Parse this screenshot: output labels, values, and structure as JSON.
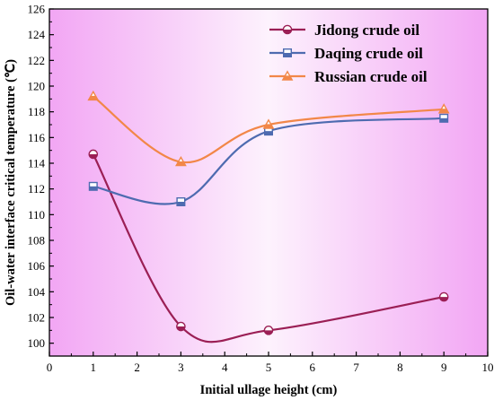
{
  "colors": {
    "background_edge": "#f2a6f4",
    "background_center": "#fdf2fd"
  },
  "chart_data": {
    "type": "line",
    "xlabel": "Initial ullage height (cm)",
    "ylabel": "Oil-water interface critical temperature (℃)",
    "xlim": [
      0,
      10
    ],
    "ylim": [
      99,
      126
    ],
    "xticks": [
      0,
      1,
      2,
      3,
      4,
      5,
      6,
      7,
      8,
      9,
      10
    ],
    "yticks": [
      100,
      102,
      104,
      106,
      108,
      110,
      112,
      114,
      116,
      118,
      120,
      122,
      124,
      126
    ],
    "x": [
      1,
      3,
      5,
      9
    ],
    "grid": false,
    "legend": "top-right",
    "series": [
      {
        "name": "Jidong crude oil",
        "values": [
          114.7,
          101.3,
          101.0,
          103.6
        ],
        "color": "#9b1f55",
        "marker": "half-circle"
      },
      {
        "name": "Daqing crude oil",
        "values": [
          112.2,
          111.0,
          116.5,
          117.5
        ],
        "color": "#4e6bb0",
        "marker": "half-square"
      },
      {
        "name": "Russian crude oil",
        "values": [
          119.2,
          114.1,
          117.0,
          118.2
        ],
        "color": "#f28748",
        "marker": "half-triangle"
      }
    ]
  }
}
